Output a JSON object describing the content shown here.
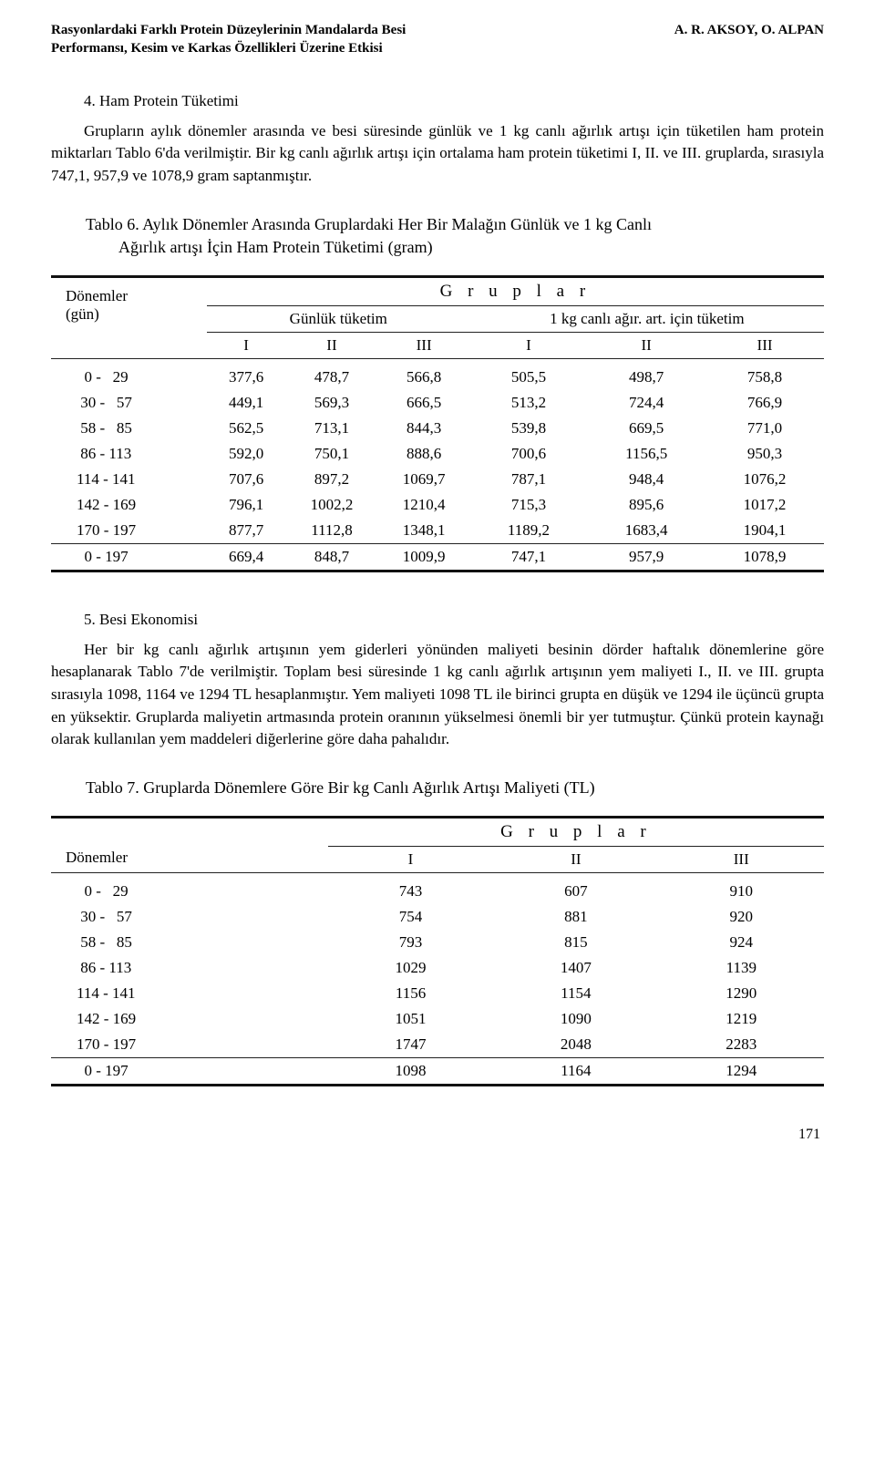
{
  "header": {
    "left_line1": "Rasyonlardaki Farklı Protein Düzeylerinin Mandalarda Besi",
    "left_line2": "Performansı, Kesim ve Karkas Özellikleri Üzerine Etkisi",
    "right": "A. R. AKSOY, O. ALPAN"
  },
  "section4": {
    "heading": "4. Ham Protein Tüketimi",
    "body": "Grupların aylık dönemler arasında ve besi süresinde günlük ve 1 kg canlı ağırlık artışı için tüketilen ham protein miktarları Tablo 6'da verilmiştir. Bir kg canlı ağırlık artışı için ortalama ham protein tüketimi I, II. ve III. gruplarda, sırasıyla 747,1, 957,9 ve 1078,9 gram saptanmıştır."
  },
  "table6": {
    "caption_part1": "Tablo 6. Aylık Dönemler Arasında Gruplardaki Her Bir Malağın Günlük ve 1 kg Canlı",
    "caption_part2": "Ağırlık artışı İçin Ham Protein Tüketimi (gram)",
    "header": {
      "donemler": "Dönemler",
      "gun": "(gün)",
      "gruplar": "G r u p l a r",
      "gunluk": "Günlük tüketim",
      "kg": "1 kg canlı ağır. art. için tüketim",
      "I": "I",
      "II": "II",
      "III": "III"
    },
    "rows": [
      {
        "period": "  0 -   29",
        "v": [
          "377,6",
          "478,7",
          "566,8",
          "505,5",
          "498,7",
          "758,8"
        ]
      },
      {
        "period": " 30 -   57",
        "v": [
          "449,1",
          "569,3",
          "666,5",
          "513,2",
          "724,4",
          "766,9"
        ]
      },
      {
        "period": " 58 -   85",
        "v": [
          "562,5",
          "713,1",
          "844,3",
          "539,8",
          "669,5",
          "771,0"
        ]
      },
      {
        "period": " 86 - 113",
        "v": [
          "592,0",
          "750,1",
          "888,6",
          "700,6",
          "1156,5",
          "950,3"
        ]
      },
      {
        "period": "114 - 141",
        "v": [
          "707,6",
          "897,2",
          "1069,7",
          "787,1",
          "948,4",
          "1076,2"
        ]
      },
      {
        "period": "142 - 169",
        "v": [
          "796,1",
          "1002,2",
          "1210,4",
          "715,3",
          "895,6",
          "1017,2"
        ]
      },
      {
        "period": "170 - 197",
        "v": [
          "877,7",
          "1112,8",
          "1348,1",
          "1189,2",
          "1683,4",
          "1904,1"
        ]
      },
      {
        "period": "  0 - 197",
        "v": [
          "669,4",
          "848,7",
          "1009,9",
          "747,1",
          "957,9",
          "1078,9"
        ]
      }
    ]
  },
  "section5": {
    "heading": "5. Besi Ekonomisi",
    "body": "Her bir kg canlı ağırlık artışının yem giderleri yönünden maliyeti besinin dörder haftalık dönemlerine göre hesaplanarak Tablo 7'de verilmiştir. Toplam besi süresinde 1 kg canlı ağırlık artışının yem maliyeti I., II. ve III. grupta sırasıyla 1098, 1164 ve 1294 TL hesaplanmıştır. Yem maliyeti 1098 TL ile birinci grupta en düşük ve 1294 ile üçüncü grupta en yüksektir. Gruplarda maliyetin artmasında protein oranının yükselmesi önemli bir yer tutmuştur. Çünkü protein kaynağı olarak kullanılan yem maddeleri diğerlerine göre daha pahalıdır."
  },
  "table7": {
    "caption": "Tablo 7. Gruplarda Dönemlere Göre Bir kg Canlı Ağırlık Artışı Maliyeti (TL)",
    "header": {
      "donemler": "Dönemler",
      "gruplar": "G r u p l a r",
      "I": "I",
      "II": "II",
      "III": "III"
    },
    "rows": [
      {
        "period": "  0 -   29",
        "v": [
          "743",
          "607",
          "910"
        ]
      },
      {
        "period": " 30 -   57",
        "v": [
          "754",
          "881",
          "920"
        ]
      },
      {
        "period": " 58 -   85",
        "v": [
          "793",
          "815",
          "924"
        ]
      },
      {
        "period": " 86 - 113",
        "v": [
          "1029",
          "1407",
          "1139"
        ]
      },
      {
        "period": "114 - 141",
        "v": [
          "1156",
          "1154",
          "1290"
        ]
      },
      {
        "period": "142 - 169",
        "v": [
          "1051",
          "1090",
          "1219"
        ]
      },
      {
        "period": "170 - 197",
        "v": [
          "1747",
          "2048",
          "2283"
        ]
      },
      {
        "period": "  0 - 197",
        "v": [
          "1098",
          "1164",
          "1294"
        ]
      }
    ]
  },
  "page_number": "171"
}
